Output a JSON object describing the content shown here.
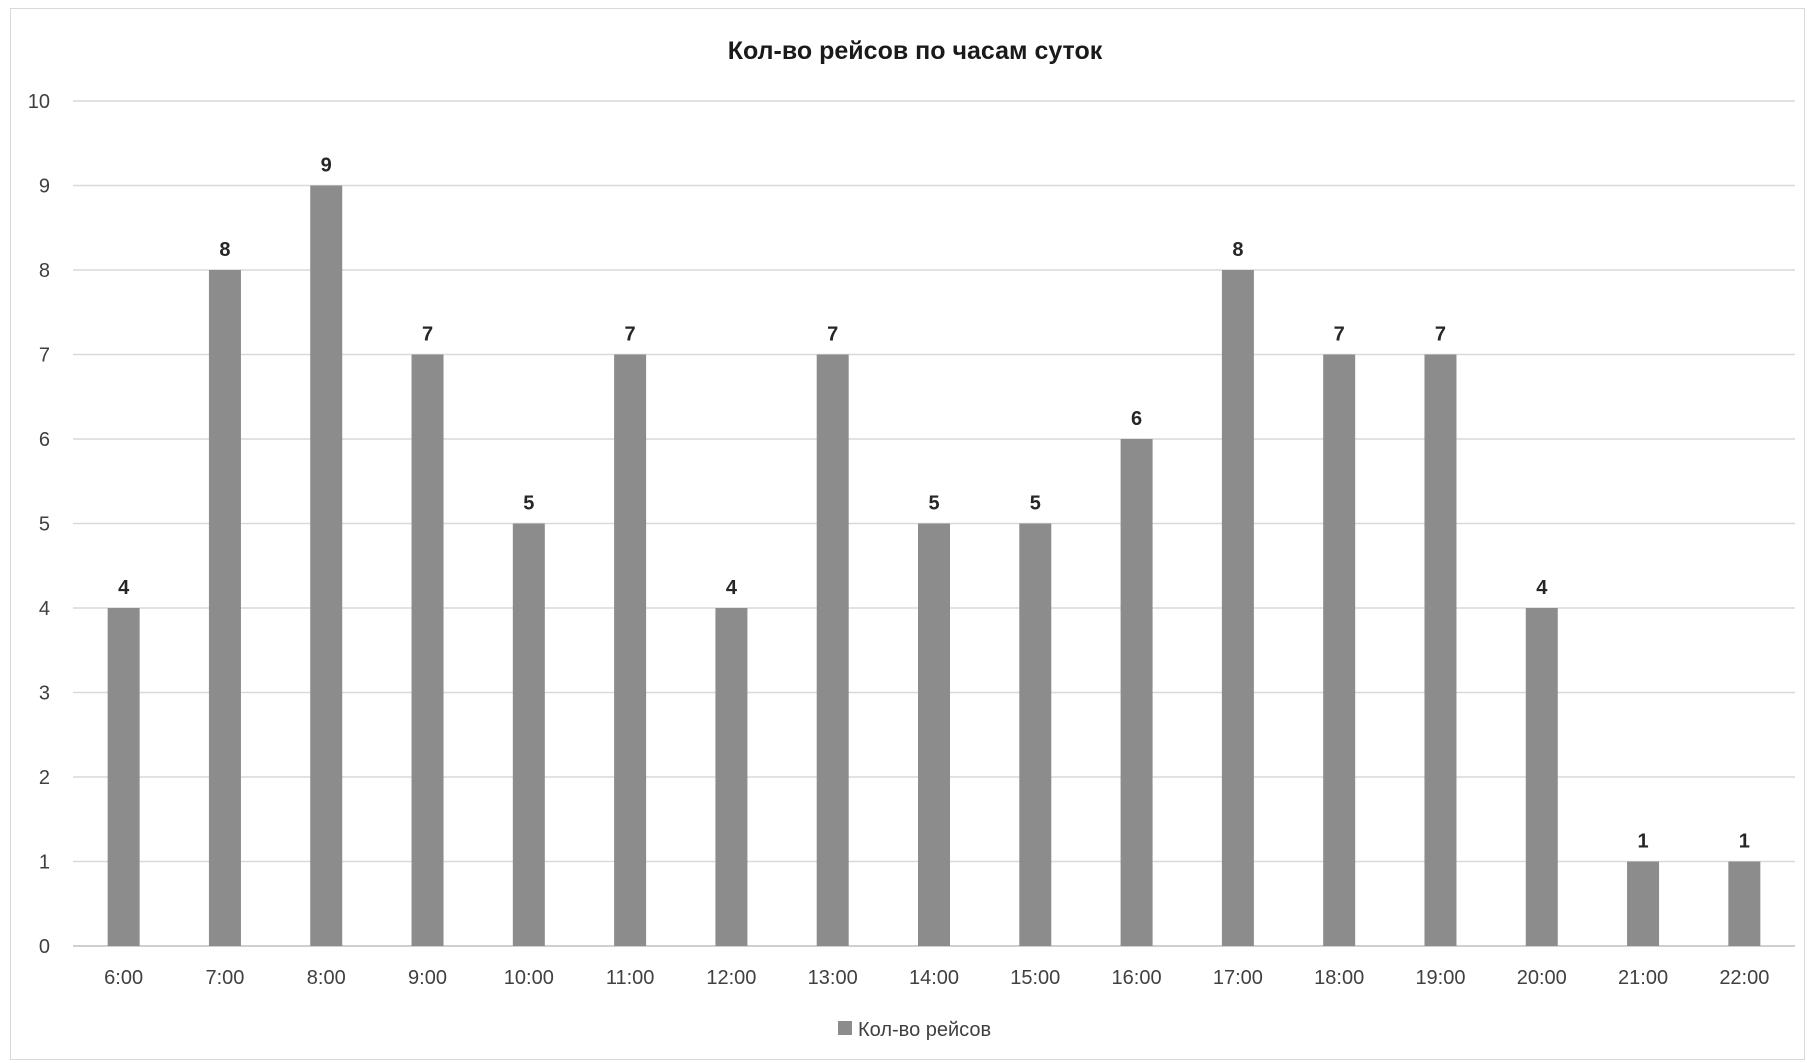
{
  "chart_data": {
    "type": "bar",
    "title": "Кол-во рейсов по часам суток",
    "categories": [
      "6:00",
      "7:00",
      "8:00",
      "9:00",
      "10:00",
      "11:00",
      "12:00",
      "13:00",
      "14:00",
      "15:00",
      "16:00",
      "17:00",
      "18:00",
      "19:00",
      "20:00",
      "21:00",
      "22:00"
    ],
    "series": [
      {
        "name": "Кол-во рейсов",
        "values": [
          4,
          8,
          9,
          7,
          5,
          7,
          4,
          7,
          5,
          5,
          6,
          8,
          7,
          7,
          4,
          1,
          1
        ]
      }
    ],
    "ylim": [
      0,
      10
    ],
    "yticks": [
      0,
      1,
      2,
      3,
      4,
      5,
      6,
      7,
      8,
      9,
      10
    ],
    "grid": true,
    "data_labels": true,
    "legend_position": "bottom",
    "colors": {
      "bar": "#8c8c8c",
      "grid": "#d9d9d9",
      "axis": "#bfbfbf"
    }
  }
}
